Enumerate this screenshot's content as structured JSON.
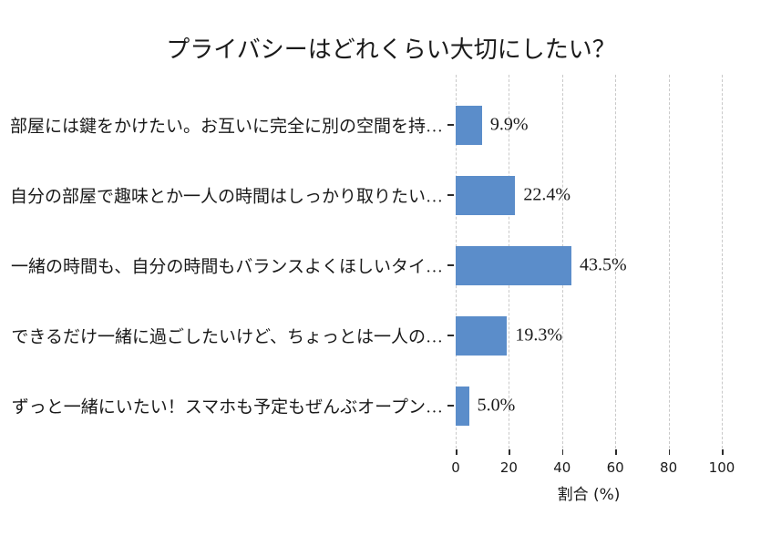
{
  "title": "プライバシーはどれくらい大切にしたい？",
  "chart_data": {
    "type": "bar",
    "orientation": "horizontal",
    "title": "プライバシーはどれくらい大切にしたい？",
    "categories": [
      "部屋には鍵をかけたい。お互いに完全に別の空間を持…",
      "自分の部屋で趣味とか一人の時間はしっかり取りたい…",
      "一緒の時間も、自分の時間もバランスよくほしいタイ…",
      "できるだけ一緒に過ごしたいけど、ちょっとは一人の…",
      "ずっと一緒にいたい！スマホも予定もぜんぶオープン…"
    ],
    "values": [
      9.9,
      22.4,
      43.5,
      19.3,
      5.0
    ],
    "value_labels": [
      "9.9%",
      "22.4%",
      "43.5%",
      "19.3%",
      "5.0%"
    ],
    "xlabel": "割合 (%)",
    "xticks": [
      0,
      20,
      40,
      60,
      80,
      100
    ],
    "xlim": [
      0,
      100
    ],
    "grid": "vertical-dashed",
    "legend": "none",
    "bar_color": "#5b8dca",
    "grid_color": "#c9c9c9",
    "text_color": "#1a1a1a",
    "background": "#ffffff"
  }
}
